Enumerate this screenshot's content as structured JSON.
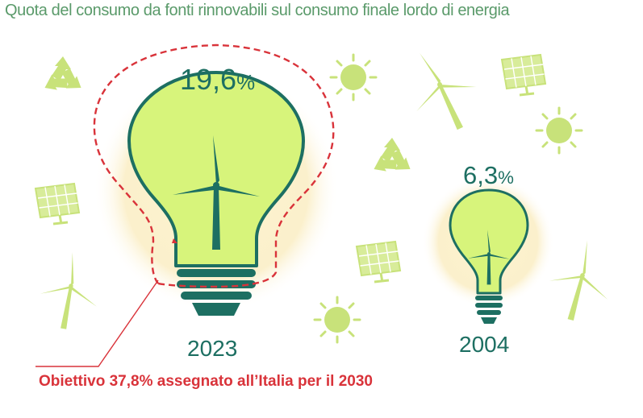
{
  "title": "Quota del consumo da fonti rinnovabili sul consumo finale lordo di energia",
  "bulb_2023": {
    "value": "19,6",
    "unit": "%",
    "year": "2023"
  },
  "bulb_2004": {
    "value": "6,3",
    "unit": "%",
    "year": "2004"
  },
  "target": {
    "label": "Obiettivo 37,8% assegnato all’Italia per il 2030",
    "value": 37.8
  },
  "colors": {
    "title": "#5a9a6a",
    "bulb_outline": "#1d6f62",
    "bulb_fill": "#d7f47b",
    "glow": "#fbefc8",
    "target": "#d9333a",
    "icon": "#c8e27a"
  },
  "icons": [
    "recycle-icon",
    "sun-icon",
    "solar-panel-icon",
    "wind-turbine-icon"
  ]
}
